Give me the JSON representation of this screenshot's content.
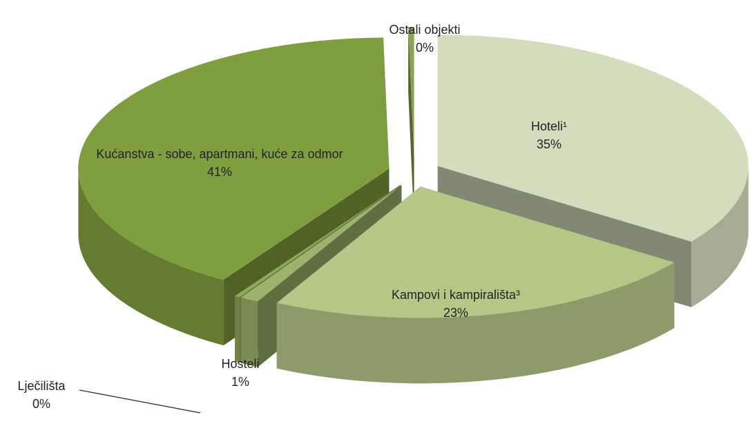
{
  "chart_data": {
    "type": "pie",
    "categories": [
      "Hoteli¹",
      "Kampovi i kampirališta³",
      "Hosteli",
      "Lječilišta",
      "Kućanstva - sobe, apartmani, kuće za odmor",
      "Ostali objekti"
    ],
    "values": [
      35,
      23,
      1,
      0.3,
      41,
      0.3
    ],
    "value_labels": [
      "35%",
      "23%",
      "1%",
      "0%",
      "41%",
      "0%"
    ],
    "colors": [
      "#d3dcbc",
      "#b3c786",
      "#9bb36a",
      "#8ea85a",
      "#7f9f3f",
      "#8aa34e"
    ]
  }
}
